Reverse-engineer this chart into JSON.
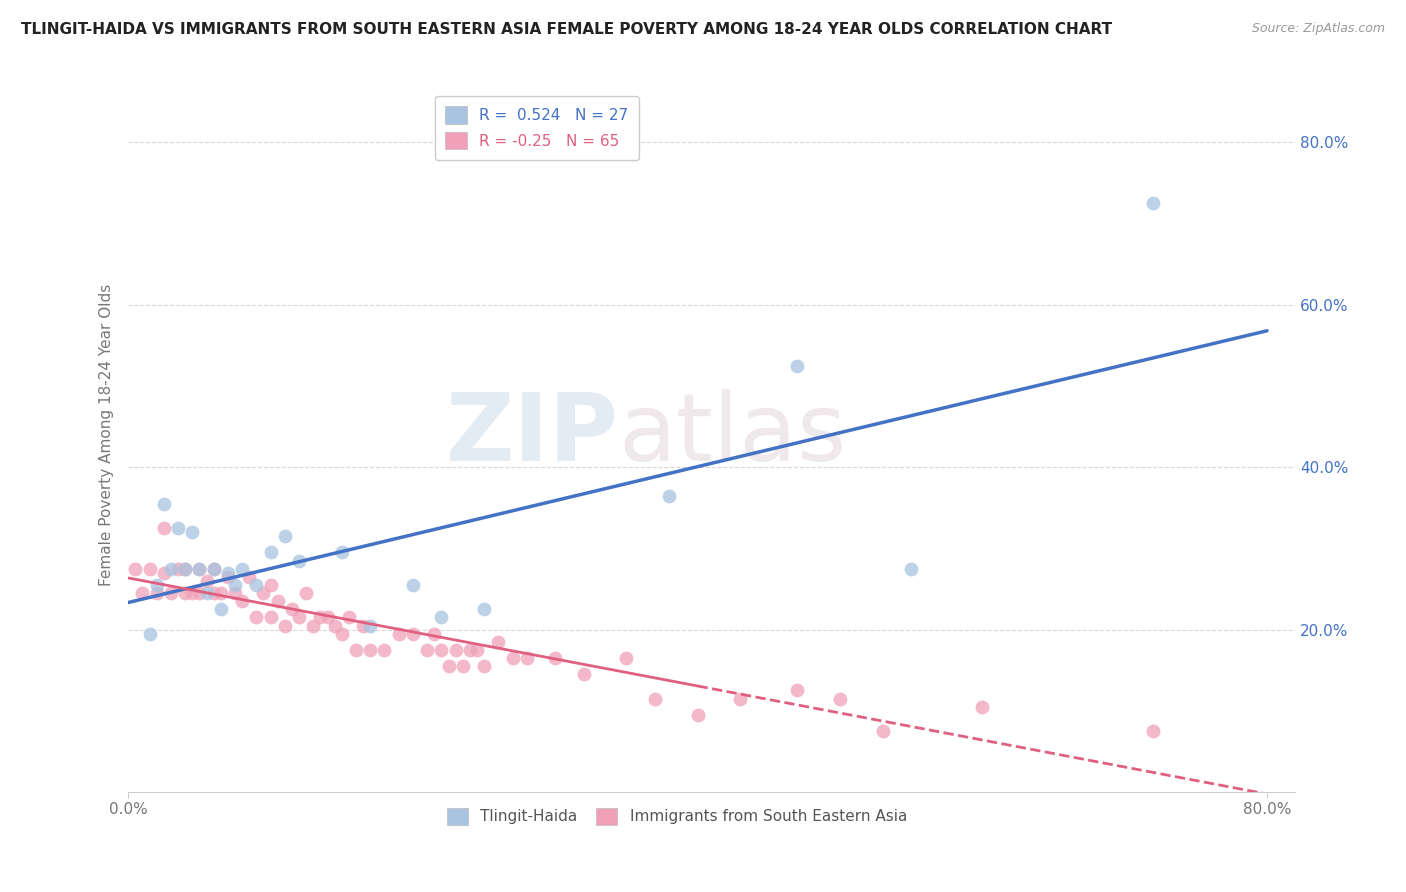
{
  "title": "TLINGIT-HAIDA VS IMMIGRANTS FROM SOUTH EASTERN ASIA FEMALE POVERTY AMONG 18-24 YEAR OLDS CORRELATION CHART",
  "source": "Source: ZipAtlas.com",
  "ylabel": "Female Poverty Among 18-24 Year Olds",
  "xlim": [
    0.0,
    0.82
  ],
  "ylim": [
    0.0,
    0.88
  ],
  "xtick_positions": [
    0.0,
    0.8
  ],
  "xticklabels": [
    "0.0%",
    "80.0%"
  ],
  "ytick_positions": [
    0.2,
    0.4,
    0.6,
    0.8
  ],
  "yticklabels": [
    "20.0%",
    "40.0%",
    "60.0%",
    "80.0%"
  ],
  "blue_R": 0.524,
  "blue_N": 27,
  "pink_R": -0.25,
  "pink_N": 65,
  "blue_color": "#a8c4e0",
  "pink_color": "#f0a0b8",
  "blue_line_color": "#4472c4",
  "pink_line_color": "#e06080",
  "watermark_zip": "ZIP",
  "watermark_atlas": "atlas",
  "legend_label_blue": "Tlingit-Haida",
  "legend_label_pink": "Immigrants from South Eastern Asia",
  "blue_scatter_x": [
    0.015,
    0.02,
    0.025,
    0.03,
    0.035,
    0.04,
    0.045,
    0.05,
    0.055,
    0.06,
    0.065,
    0.07,
    0.075,
    0.08,
    0.09,
    0.1,
    0.11,
    0.12,
    0.15,
    0.17,
    0.2,
    0.22,
    0.25,
    0.38,
    0.47,
    0.55,
    0.72
  ],
  "blue_scatter_y": [
    0.195,
    0.255,
    0.355,
    0.275,
    0.325,
    0.275,
    0.32,
    0.275,
    0.245,
    0.275,
    0.225,
    0.27,
    0.255,
    0.275,
    0.255,
    0.295,
    0.315,
    0.285,
    0.295,
    0.205,
    0.255,
    0.215,
    0.225,
    0.365,
    0.525,
    0.275,
    0.725
  ],
  "pink_scatter_x": [
    0.005,
    0.01,
    0.015,
    0.02,
    0.025,
    0.025,
    0.03,
    0.035,
    0.04,
    0.04,
    0.045,
    0.05,
    0.05,
    0.055,
    0.06,
    0.06,
    0.065,
    0.07,
    0.075,
    0.08,
    0.085,
    0.09,
    0.095,
    0.1,
    0.1,
    0.105,
    0.11,
    0.115,
    0.12,
    0.125,
    0.13,
    0.135,
    0.14,
    0.145,
    0.15,
    0.155,
    0.16,
    0.165,
    0.17,
    0.18,
    0.19,
    0.2,
    0.21,
    0.215,
    0.22,
    0.225,
    0.23,
    0.235,
    0.24,
    0.245,
    0.25,
    0.26,
    0.27,
    0.28,
    0.3,
    0.32,
    0.35,
    0.37,
    0.4,
    0.43,
    0.47,
    0.5,
    0.53,
    0.6,
    0.72
  ],
  "pink_scatter_y": [
    0.275,
    0.245,
    0.275,
    0.245,
    0.27,
    0.325,
    0.245,
    0.275,
    0.245,
    0.275,
    0.245,
    0.245,
    0.275,
    0.26,
    0.245,
    0.275,
    0.245,
    0.265,
    0.245,
    0.235,
    0.265,
    0.215,
    0.245,
    0.215,
    0.255,
    0.235,
    0.205,
    0.225,
    0.215,
    0.245,
    0.205,
    0.215,
    0.215,
    0.205,
    0.195,
    0.215,
    0.175,
    0.205,
    0.175,
    0.175,
    0.195,
    0.195,
    0.175,
    0.195,
    0.175,
    0.155,
    0.175,
    0.155,
    0.175,
    0.175,
    0.155,
    0.185,
    0.165,
    0.165,
    0.165,
    0.145,
    0.165,
    0.115,
    0.095,
    0.115,
    0.125,
    0.115,
    0.075,
    0.105,
    0.075
  ],
  "background_color": "#ffffff",
  "grid_color": "#d8d8d8"
}
